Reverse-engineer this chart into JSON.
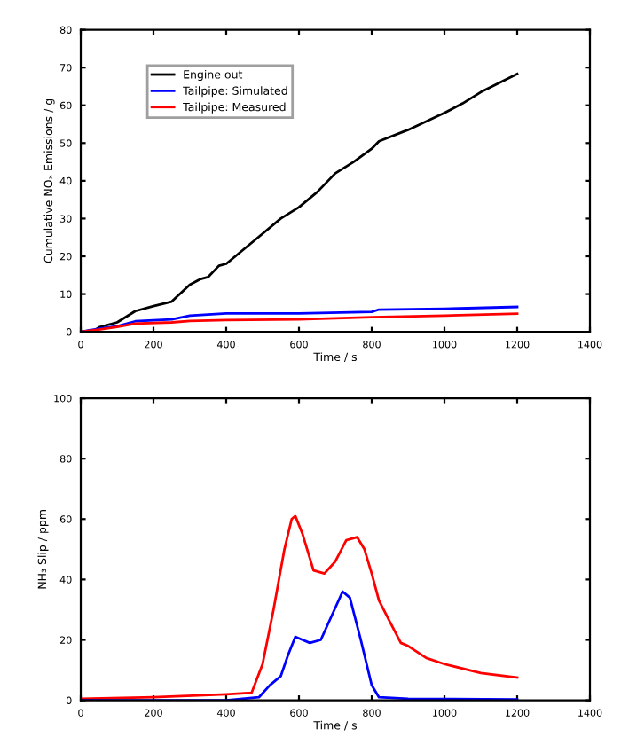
{
  "chart_data": [
    {
      "type": "line",
      "xlabel": "Time / s",
      "ylabel": "Cumulative NOₓ Emissions / g",
      "xlim": [
        0,
        1400
      ],
      "xticks": [
        0,
        200,
        400,
        600,
        800,
        1000,
        1200,
        1400
      ],
      "ylim": [
        0,
        80
      ],
      "yticks": [
        0,
        10,
        20,
        30,
        40,
        50,
        60,
        70,
        80
      ],
      "grid": false,
      "legend": "top left",
      "series": [
        {
          "name": "Engine out",
          "color": "#000000",
          "x": [
            0,
            40,
            50,
            100,
            150,
            200,
            250,
            300,
            330,
            350,
            380,
            400,
            450,
            500,
            550,
            600,
            650,
            700,
            750,
            800,
            820,
            900,
            1000,
            1050,
            1100,
            1200
          ],
          "values": [
            0,
            0.5,
            1.2,
            2.5,
            5.5,
            6.8,
            8,
            12.5,
            14,
            14.5,
            17.5,
            18,
            22,
            26,
            30,
            33,
            37,
            42,
            45,
            48.5,
            50.5,
            53.5,
            58,
            60.5,
            63.5,
            68.3
          ]
        },
        {
          "name": "Tailpipe: Simulated",
          "color": "#0000ff",
          "x": [
            0,
            50,
            100,
            150,
            250,
            300,
            400,
            600,
            800,
            820,
            1000,
            1200
          ],
          "values": [
            0,
            0.8,
            1.5,
            2.8,
            3.3,
            4.3,
            4.9,
            4.9,
            5.3,
            5.9,
            6.1,
            6.6
          ]
        },
        {
          "name": "Tailpipe: Measured",
          "color": "#ff0000",
          "x": [
            0,
            50,
            100,
            150,
            250,
            300,
            400,
            600,
            800,
            1000,
            1200
          ],
          "values": [
            0,
            0.6,
            1.3,
            2.2,
            2.5,
            2.9,
            3.1,
            3.3,
            3.9,
            4.3,
            4.8
          ]
        }
      ]
    },
    {
      "type": "line",
      "xlabel": "Time / s",
      "ylabel": "NH₃ Slip / ppm",
      "xlim": [
        0,
        1400
      ],
      "xticks": [
        0,
        200,
        400,
        600,
        800,
        1000,
        1200,
        1400
      ],
      "ylim": [
        0,
        100
      ],
      "yticks": [
        0,
        20,
        40,
        60,
        80,
        100
      ],
      "grid": false,
      "series": [
        {
          "color": "#ff0000",
          "x": [
            0,
            200,
            400,
            470,
            500,
            530,
            560,
            580,
            590,
            610,
            640,
            670,
            700,
            730,
            760,
            780,
            800,
            820,
            850,
            880,
            900,
            950,
            1000,
            1100,
            1200
          ],
          "values": [
            0.5,
            1,
            2,
            2.5,
            12,
            30,
            50,
            60,
            61,
            55,
            43,
            42,
            46,
            53,
            54,
            50,
            42,
            33,
            26,
            19,
            18,
            14,
            12,
            9,
            7.5
          ]
        },
        {
          "color": "#0000ff",
          "x": [
            0,
            400,
            490,
            520,
            550,
            570,
            590,
            610,
            630,
            660,
            690,
            720,
            740,
            770,
            800,
            820,
            900,
            1200
          ],
          "values": [
            0,
            0,
            1,
            5,
            8,
            15,
            21,
            20,
            19,
            20,
            28,
            36,
            34,
            20,
            5,
            1,
            0.5,
            0.3
          ]
        }
      ]
    }
  ]
}
